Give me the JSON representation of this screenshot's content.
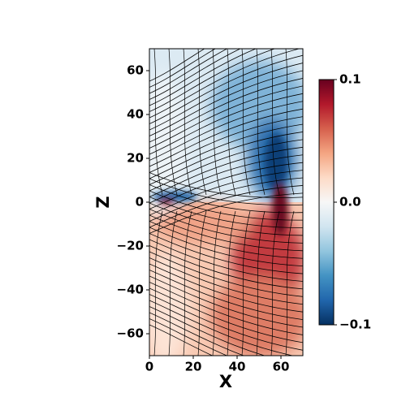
{
  "chart_data": {
    "type": "field",
    "xlabel": "X",
    "ylabel": "Z",
    "xlim": [
      0,
      70
    ],
    "ylim": [
      -70,
      70
    ],
    "xticks": [
      0,
      20,
      40,
      60
    ],
    "yticks": [
      {
        "value": -60,
        "label": "−60"
      },
      {
        "value": -40,
        "label": "−40"
      },
      {
        "value": -20,
        "label": "−20"
      },
      0,
      20,
      40,
      60
    ],
    "colorbar": {
      "lim": [
        -0.1,
        0.1
      ],
      "ticks": [
        {
          "value": -0.1,
          "label": "−0.1"
        },
        {
          "value": 0,
          "label": "0.0"
        },
        0.1
      ]
    }
  }
}
